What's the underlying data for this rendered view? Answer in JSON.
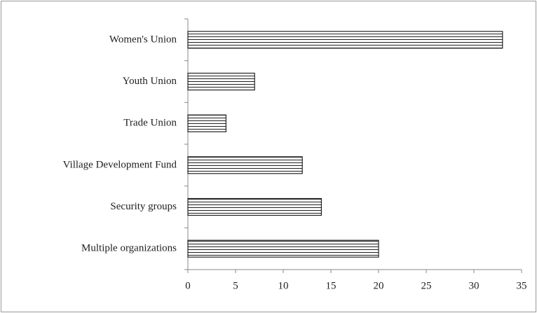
{
  "chart_data": {
    "type": "barh",
    "categories": [
      "Women's Union",
      "Youth Union",
      "Trade Union",
      "Village Development Fund",
      "Security groups",
      "Multiple organizations"
    ],
    "values": [
      33,
      7,
      4,
      12,
      14,
      20
    ],
    "color": "#222222",
    "xlim": [
      0,
      35
    ],
    "xticks": [
      0,
      5,
      10,
      15,
      20,
      25,
      30,
      35
    ]
  }
}
